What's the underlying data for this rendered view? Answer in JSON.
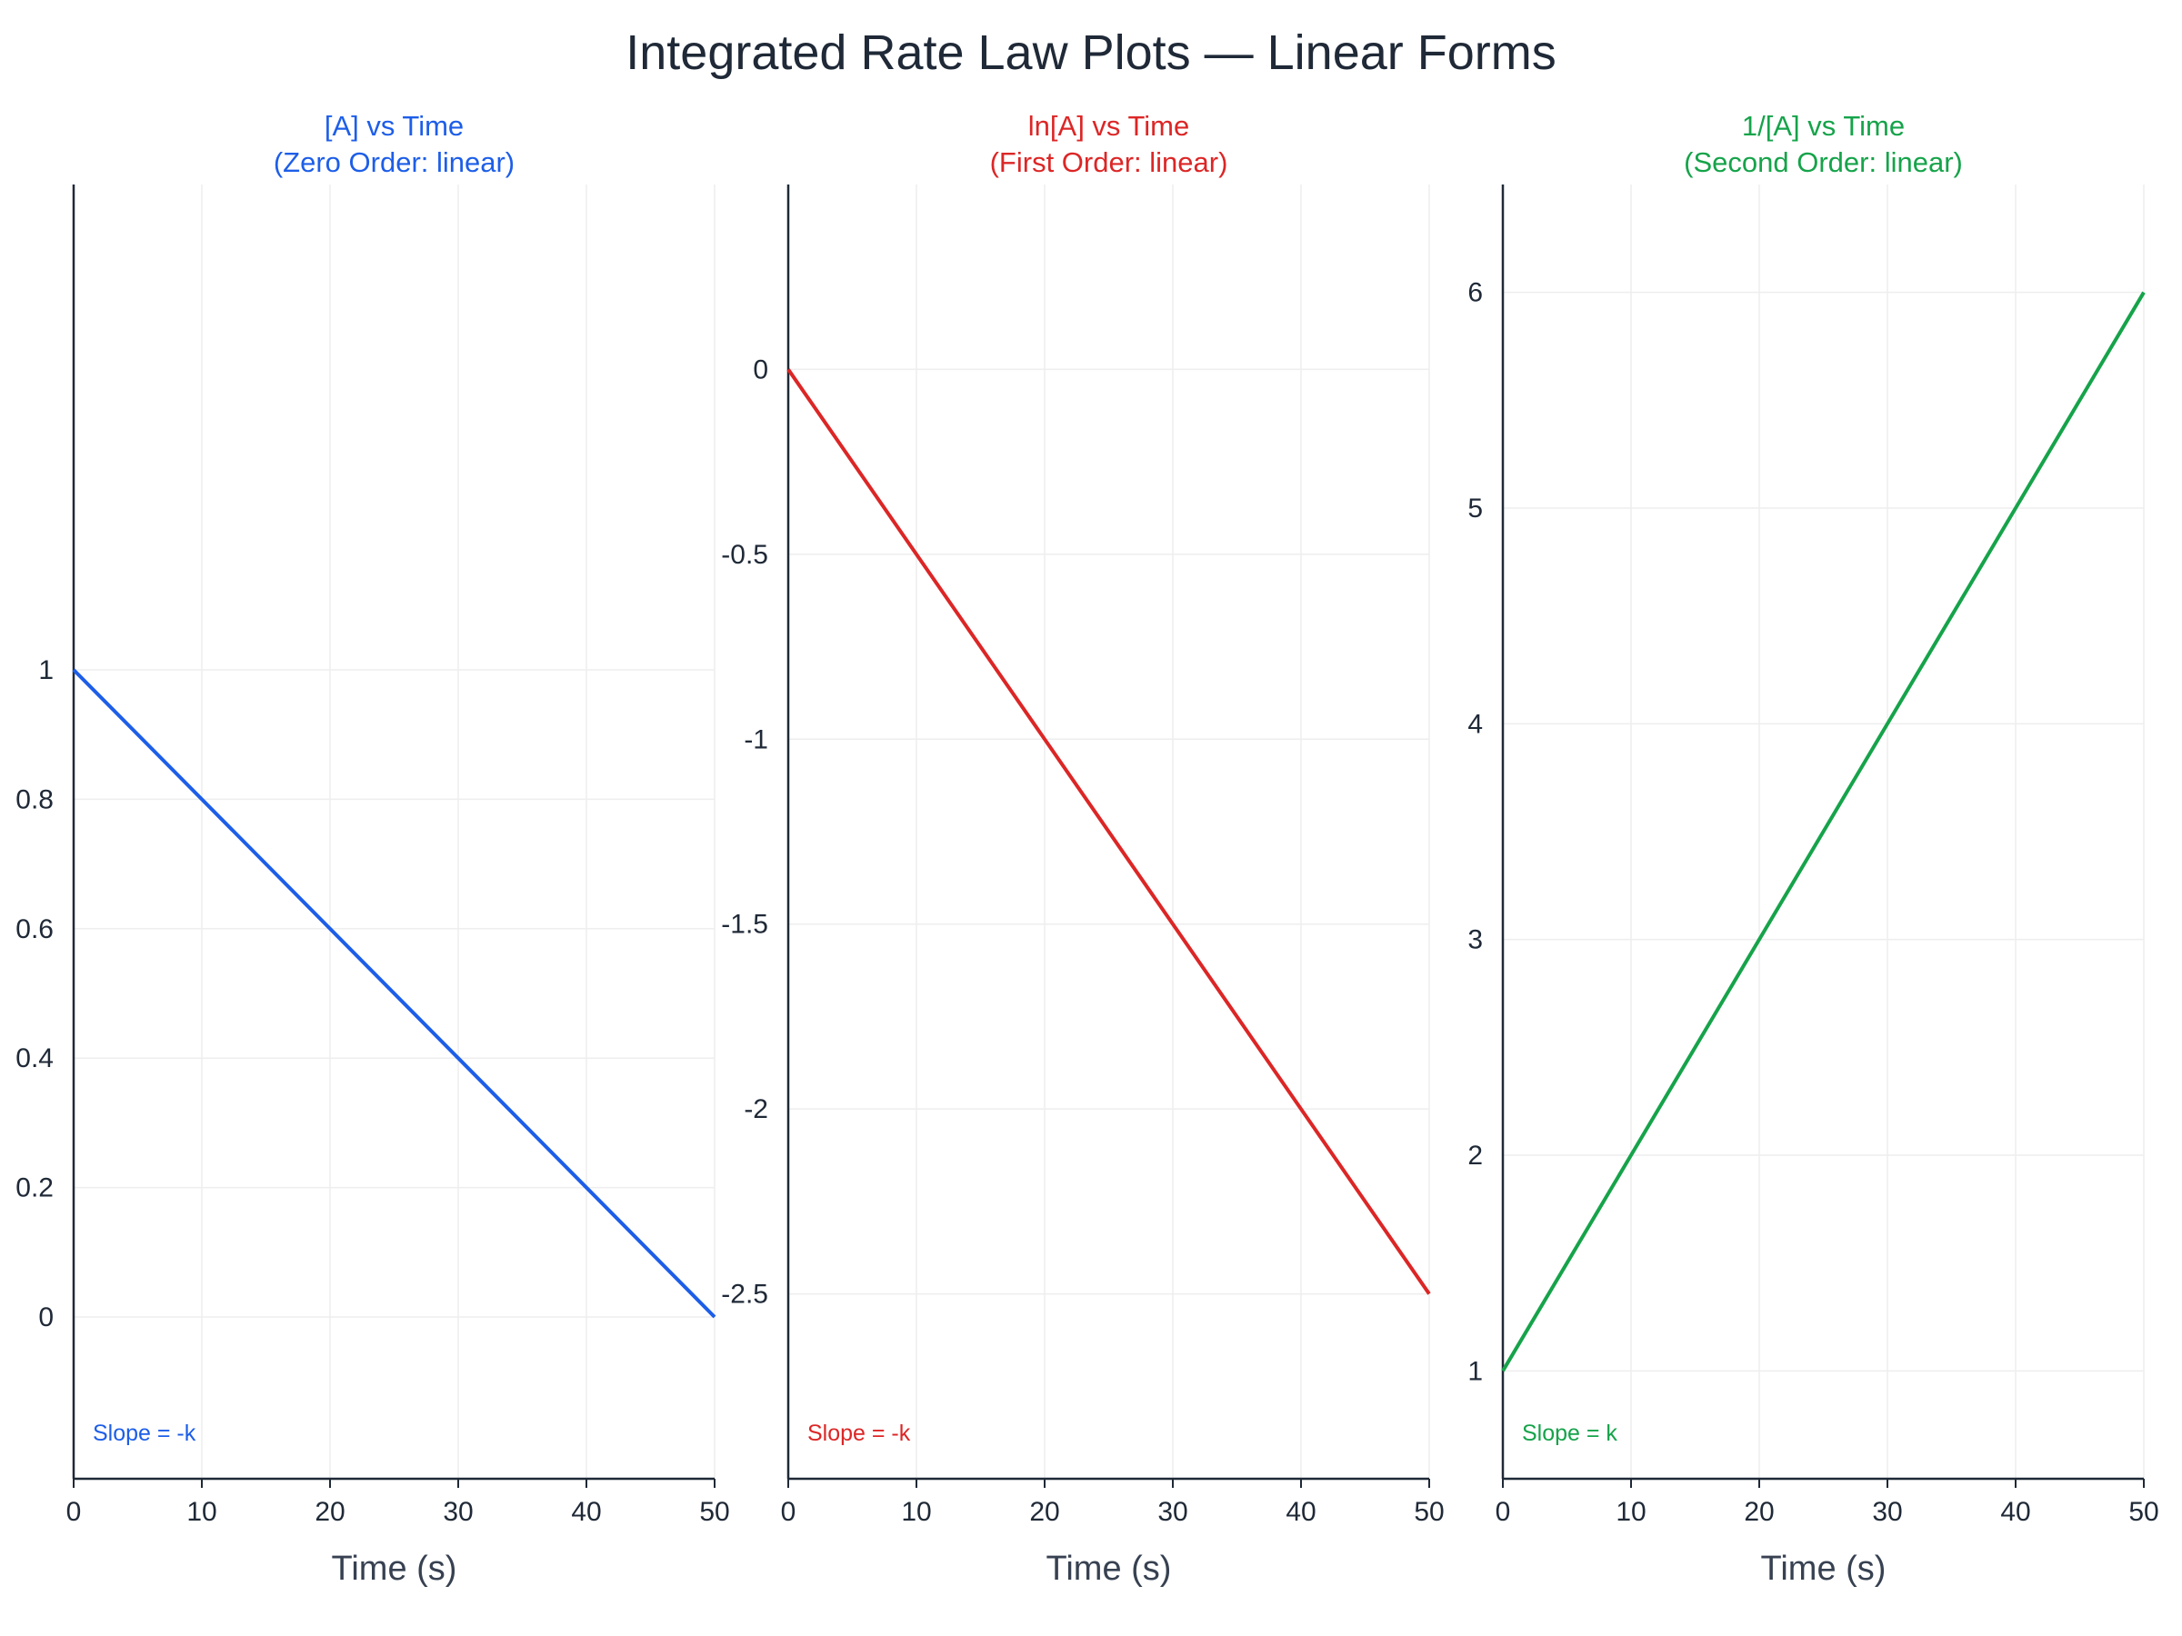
{
  "title": "Integrated Rate Law Plots — Linear Forms",
  "colors": {
    "background": "#ffffff",
    "grid": "#eeeeee",
    "axis": "#1f2937",
    "text": "#1f2937"
  },
  "chart_data": [
    {
      "type": "line",
      "title_lines": [
        "[A] vs Time",
        "(Zero Order: linear)"
      ],
      "xlabel": "Time (s)",
      "ylabel": "",
      "xlim": [
        0,
        50
      ],
      "ylim": [
        -0.25,
        1.75
      ],
      "x_ticks": [
        0,
        10,
        20,
        30,
        40,
        50
      ],
      "y_ticks": [
        0,
        0.2,
        0.4,
        0.6,
        0.8,
        1
      ],
      "grid": true,
      "series": [
        {
          "color": "#1d5ee8",
          "x": [
            0,
            50
          ],
          "y": [
            1,
            0
          ]
        }
      ],
      "annotation": {
        "text": "Slope = -k",
        "color": "#1d5ee8"
      }
    },
    {
      "type": "line",
      "title_lines": [
        "ln[A] vs Time",
        "(First Order: linear)"
      ],
      "xlabel": "Time (s)",
      "ylabel": "",
      "xlim": [
        0,
        50
      ],
      "ylim": [
        -3.0,
        0.5
      ],
      "x_ticks": [
        0,
        10,
        20,
        30,
        40,
        50
      ],
      "y_ticks": [
        0,
        -0.5,
        -1,
        -1.5,
        -2,
        -2.5
      ],
      "grid": true,
      "series": [
        {
          "color": "#dc2626",
          "x": [
            0,
            50
          ],
          "y": [
            0,
            -2.5
          ]
        }
      ],
      "annotation": {
        "text": "Slope = -k",
        "color": "#dc2626"
      }
    },
    {
      "type": "line",
      "title_lines": [
        "1/[A] vs Time",
        "(Second Order: linear)"
      ],
      "xlabel": "Time (s)",
      "ylabel": "",
      "xlim": [
        0,
        50
      ],
      "ylim": [
        0.5,
        6.5
      ],
      "x_ticks": [
        0,
        10,
        20,
        30,
        40,
        50
      ],
      "y_ticks": [
        1,
        2,
        3,
        4,
        5,
        6
      ],
      "grid": true,
      "series": [
        {
          "color": "#16a34a",
          "x": [
            0,
            50
          ],
          "y": [
            1,
            6
          ]
        }
      ],
      "annotation": {
        "text": "Slope = k",
        "color": "#16a34a"
      }
    }
  ]
}
